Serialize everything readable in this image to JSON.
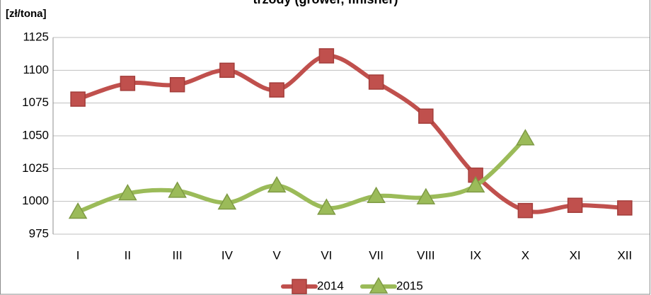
{
  "chart_data": {
    "type": "line",
    "title": "trzody (grower, finisher)",
    "y_label": "[zł/tona]",
    "categories": [
      "I",
      "II",
      "III",
      "IV",
      "V",
      "VI",
      "VII",
      "VIII",
      "IX",
      "X",
      "XI",
      "XII"
    ],
    "series": [
      {
        "name": "2014",
        "color": "#c0504d",
        "marker": "square",
        "values": [
          1078,
          1090,
          1089,
          1100,
          1085,
          1111,
          1091,
          1065,
          1020,
          993,
          997,
          995
        ]
      },
      {
        "name": "2015",
        "color": "#9bbb59",
        "marker": "triangle",
        "values": [
          992,
          1006,
          1008,
          999,
          1012,
          995,
          1004,
          1003,
          1012,
          1048,
          null,
          null
        ]
      }
    ],
    "ylim": [
      975,
      1125
    ],
    "yticks": [
      975,
      1000,
      1025,
      1050,
      1075,
      1100,
      1125
    ],
    "grid": true,
    "smooth": true,
    "legend": "bottom"
  }
}
